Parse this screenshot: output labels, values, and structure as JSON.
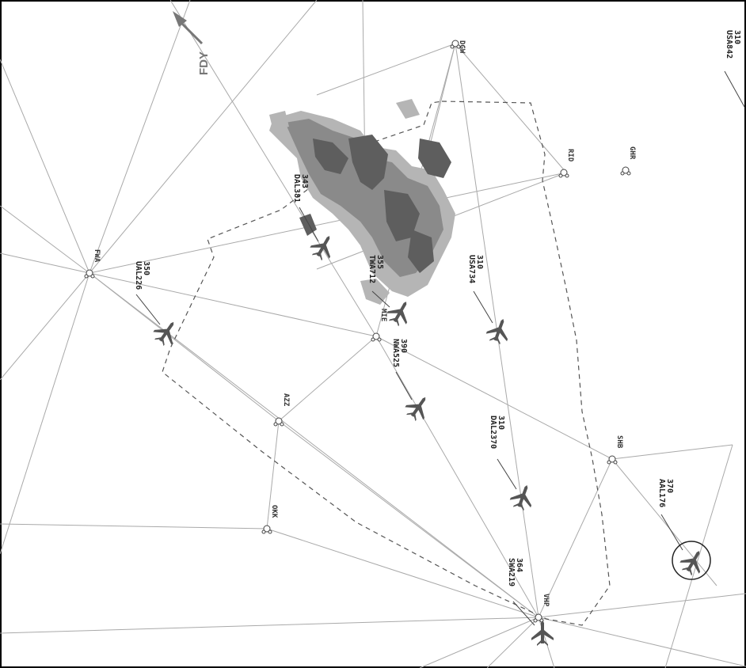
{
  "direction_label": "FDY",
  "fixes": [
    {
      "id": "fix-dgw",
      "label": "DGW"
    },
    {
      "id": "fix-rid",
      "label": "RID"
    },
    {
      "id": "fix-ghr",
      "label": "GHR"
    },
    {
      "id": "fix-fwa",
      "label": "FWA"
    },
    {
      "id": "fix-mie",
      "label": "MIE"
    },
    {
      "id": "fix-azz",
      "label": "AZZ"
    },
    {
      "id": "fix-okk",
      "label": "OKK"
    },
    {
      "id": "fix-shb",
      "label": "SHB"
    },
    {
      "id": "fix-vhp",
      "label": "VHP"
    }
  ],
  "aircraft": [
    {
      "id": "USA842",
      "callsign": "USA842",
      "altitude": "310"
    },
    {
      "id": "DAL381",
      "callsign": "DAL381",
      "altitude": "343"
    },
    {
      "id": "TWA712",
      "callsign": "TWA712",
      "altitude": "355"
    },
    {
      "id": "USA734",
      "callsign": "USA734",
      "altitude": "310"
    },
    {
      "id": "UAL226",
      "callsign": "UAL226",
      "altitude": "350"
    },
    {
      "id": "NWA525",
      "callsign": "NWA525",
      "altitude": "390"
    },
    {
      "id": "DAL2370",
      "callsign": "DAL2370",
      "altitude": "310"
    },
    {
      "id": "AAL176",
      "callsign": "AAL176",
      "altitude": "370"
    },
    {
      "id": "SWA219",
      "callsign": "SWA219",
      "altitude": "364"
    }
  ]
}
